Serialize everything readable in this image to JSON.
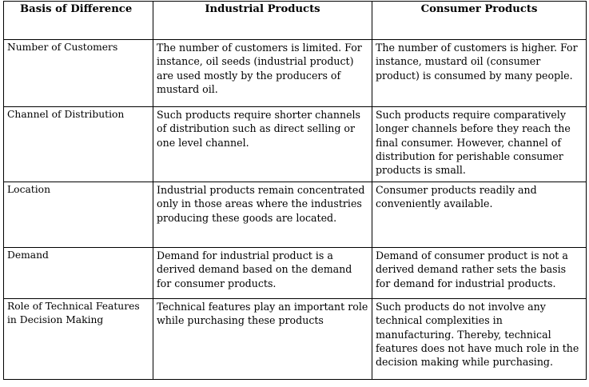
{
  "table": {
    "headers": [
      "Basis of Difference",
      "Industrial Products",
      "Consumer Products"
    ],
    "rows": [
      {
        "basis": "Number of Customers",
        "industrial": "The number of customers is limited. For instance, oil seeds (industrial product) are used mostly by the producers of mustard oil.",
        "consumer": "The number of customers is higher. For instance, mustard oil (consumer product) is consumed by many people."
      },
      {
        "basis": "Channel of Distribution",
        "industrial": "Such products require shorter channels of distribution such as direct selling or one level channel.",
        "consumer": "Such products require comparatively longer channels before they reach the final consumer. However, channel of distribution for perishable consumer products is small."
      },
      {
        "basis": "Location",
        "industrial": "Industrial products remain concentrated only in those areas where the industries producing these goods are located.",
        "consumer": "Consumer products readily and conveniently available."
      },
      {
        "basis": "Demand",
        "industrial": "Demand for industrial product is a derived demand based on the demand for consumer products.",
        "consumer": "Demand of consumer product is not a derived demand rather sets the basis for demand for industrial products."
      },
      {
        "basis": "Role of Technical Features in Decision Making",
        "industrial": "Technical features play an important role while purchasing these products",
        "consumer": "Such products do not involve any technical complexities in manufacturing. Thereby, technical features does not have much role in the decision making while purchasing."
      }
    ]
  }
}
